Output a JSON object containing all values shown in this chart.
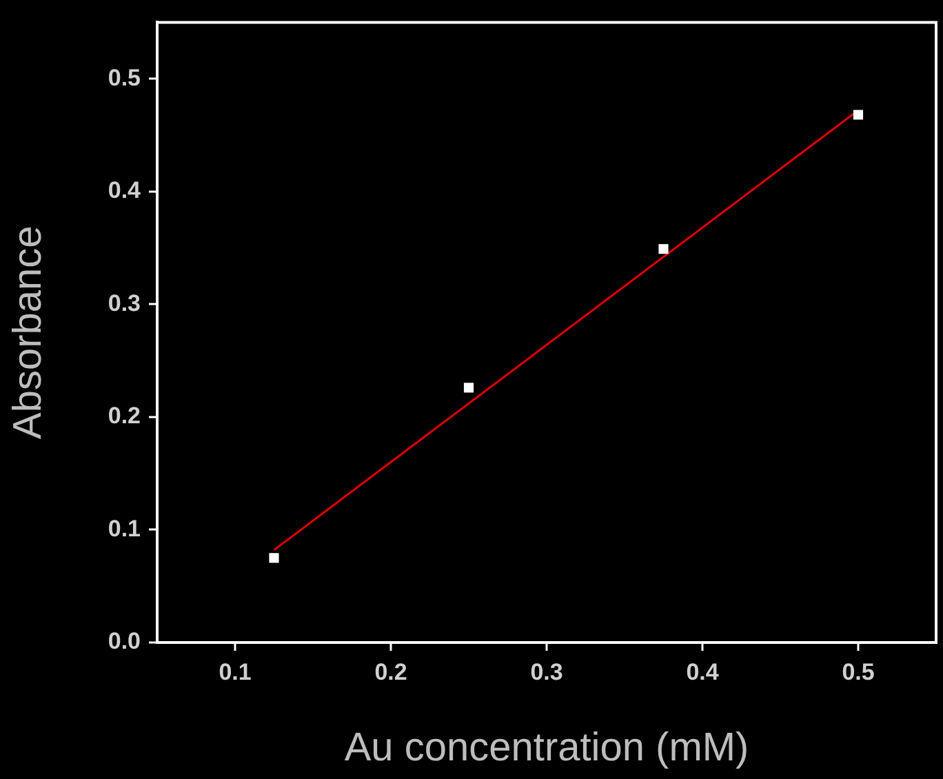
{
  "chart_data": {
    "type": "scatter",
    "xlabel": "Au concentration (mM)",
    "ylabel": "Absorbance",
    "x": [
      0.125,
      0.25,
      0.375,
      0.5
    ],
    "series": [
      {
        "type": "scatter",
        "color": "#ffffff",
        "values": [
          0.075,
          0.226,
          0.349,
          0.468
        ],
        "marker": "square"
      },
      {
        "type": "line",
        "color": "#e00000",
        "x": [
          0.125,
          0.5
        ],
        "values": [
          0.082,
          0.472
        ],
        "marker": "none"
      }
    ],
    "xlim": [
      0.05,
      0.55
    ],
    "xticks": [
      0.1,
      0.2,
      0.3,
      0.4,
      0.5
    ],
    "ylim": [
      0,
      0.55
    ],
    "yticks": [
      {
        "value": 0,
        "label": "0.0"
      },
      0.1,
      0.2,
      0.3,
      0.4,
      0.5
    ],
    "grid": false,
    "legend": false
  }
}
